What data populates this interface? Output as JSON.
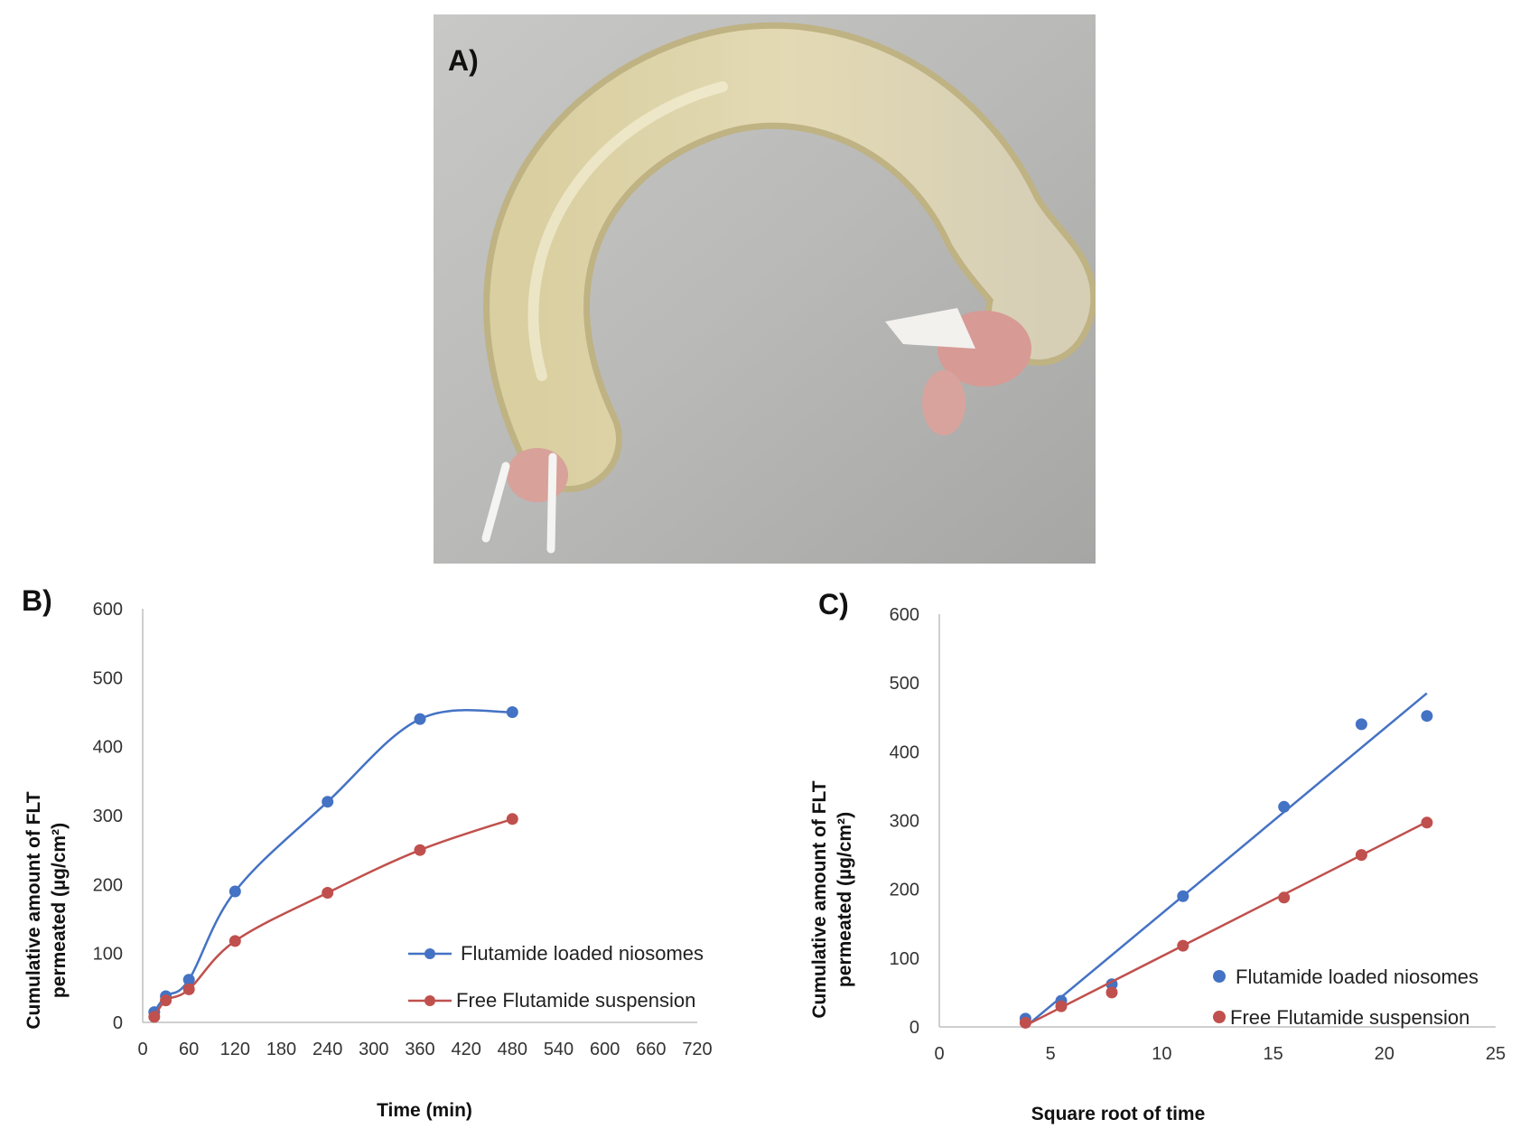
{
  "panel_a": {
    "label": "A)"
  },
  "chart_data": [
    {
      "type": "line",
      "panel_label": "B)",
      "xlabel": "Time (min)",
      "ylabel_line1": "Cumulative amount of FLT",
      "ylabel_line2": "permeated (µg/cm²)",
      "xlim": [
        0,
        720
      ],
      "ylim": [
        0,
        600
      ],
      "xticks": [
        0,
        60,
        120,
        180,
        240,
        300,
        360,
        420,
        480,
        540,
        600,
        660,
        720
      ],
      "yticks": [
        0,
        100,
        200,
        300,
        400,
        500,
        600
      ],
      "grid": false,
      "legend_position": "center-right",
      "series": [
        {
          "name": "Flutamide loaded niosomes",
          "color": "#4472C4",
          "x": [
            15,
            30,
            60,
            120,
            240,
            360,
            480
          ],
          "y": [
            15,
            38,
            62,
            190,
            320,
            440,
            450
          ]
        },
        {
          "name": "Free Flutamide suspension",
          "color": "#C0504D",
          "x": [
            15,
            30,
            60,
            120,
            240,
            360,
            480
          ],
          "y": [
            8,
            32,
            48,
            118,
            188,
            250,
            295
          ]
        }
      ]
    },
    {
      "type": "scatter",
      "panel_label": "C)",
      "xlabel": "Square root of time",
      "ylabel_line1": "Cumulative amount of FLT",
      "ylabel_line2": "permeated (µg/cm²)",
      "xlim": [
        0,
        25
      ],
      "ylim": [
        0,
        600
      ],
      "xticks": [
        0,
        5,
        10,
        15,
        20,
        25
      ],
      "yticks": [
        0,
        100,
        200,
        300,
        400,
        500,
        600
      ],
      "grid": false,
      "legend_position": "bottom-right",
      "series": [
        {
          "name": "Flutamide loaded niosomes",
          "color": "#4472C4",
          "x": [
            3.87,
            5.48,
            7.75,
            10.95,
            15.49,
            18.97,
            21.91
          ],
          "y": [
            12,
            38,
            62,
            190,
            320,
            440,
            452
          ],
          "trendline": [
            [
              3.87,
              0
            ],
            [
              21.91,
              485
            ]
          ]
        },
        {
          "name": "Free Flutamide suspension",
          "color": "#C0504D",
          "x": [
            3.87,
            5.48,
            7.75,
            10.95,
            15.49,
            18.97,
            21.91
          ],
          "y": [
            6,
            30,
            50,
            118,
            188,
            250,
            297
          ],
          "trendline": [
            [
              3.87,
              2
            ],
            [
              21.91,
              298
            ]
          ]
        }
      ]
    }
  ]
}
